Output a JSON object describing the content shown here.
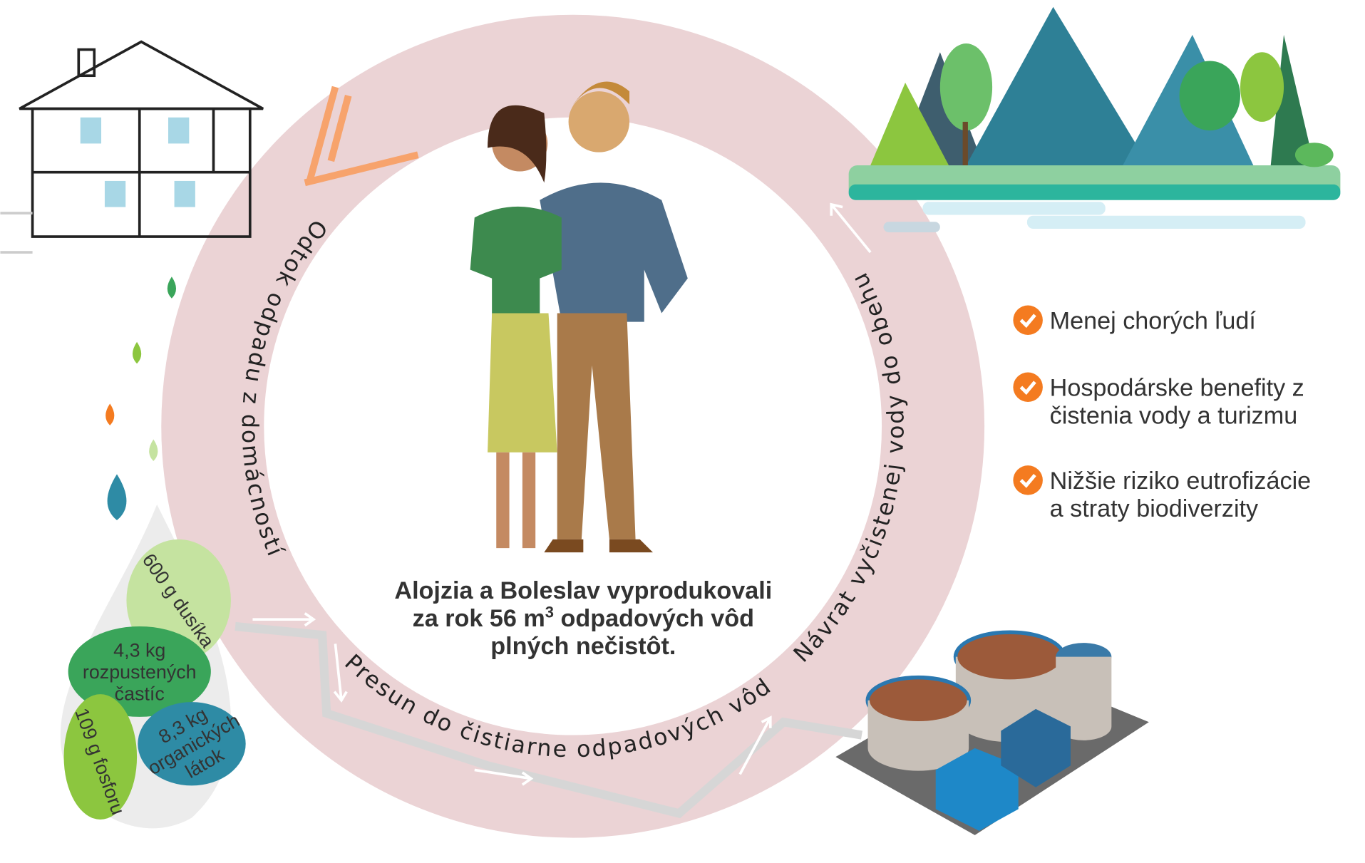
{
  "center_text": {
    "line1": "Alojzia a Boleslav vyprodukovali",
    "line2_start": "za rok 56 m",
    "line2_sup": "3",
    "line2_end": " odpadových vôd",
    "line3": "plných nečistôt."
  },
  "cycle_labels": [
    "Odtok odpadu z domácností",
    "Presun do čistiarne odpadových vôd",
    "Návrat vyčistenej vody do obehu"
  ],
  "benefits": [
    {
      "lines": [
        "Menej chorých ľudí"
      ]
    },
    {
      "lines": [
        "Hospodárske benefity z",
        "čistenia vody a turizmu"
      ]
    },
    {
      "lines": [
        "Nižšie riziko eutrofizácie",
        "a straty biodiverzity"
      ]
    }
  ],
  "pollutants": [
    {
      "lines": [
        "600 g dusíka"
      ]
    },
    {
      "lines": [
        "4,3 kg",
        "rozpustených",
        "častíc"
      ]
    },
    {
      "lines": [
        "8,3 kg",
        "organických",
        "látok"
      ]
    },
    {
      "lines": [
        "109 g fosforu"
      ]
    }
  ]
}
